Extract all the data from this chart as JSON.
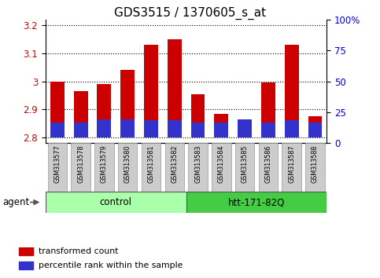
{
  "title": "GDS3515 / 1370605_s_at",
  "samples": [
    "GSM313577",
    "GSM313578",
    "GSM313579",
    "GSM313580",
    "GSM313581",
    "GSM313582",
    "GSM313583",
    "GSM313584",
    "GSM313585",
    "GSM313586",
    "GSM313587",
    "GSM313588"
  ],
  "transformed_count": [
    3.0,
    2.965,
    2.99,
    3.04,
    3.13,
    3.15,
    2.955,
    2.885,
    2.845,
    2.995,
    3.13,
    2.875
  ],
  "percentile_rank_pct": [
    12,
    12,
    15,
    15,
    14,
    14,
    12,
    12,
    15,
    12,
    14,
    12
  ],
  "bar_base": 2.8,
  "ylim_left": [
    2.78,
    3.22
  ],
  "ylim_right": [
    0,
    100
  ],
  "right_ticks": [
    0,
    25,
    50,
    75,
    100
  ],
  "right_tick_labels": [
    "0",
    "25",
    "50",
    "75",
    "100%"
  ],
  "left_yticks": [
    2.8,
    2.9,
    3.0,
    3.1,
    3.2
  ],
  "left_ytick_labels": [
    "2.8",
    "2.9",
    "3",
    "3.1",
    "3.2"
  ],
  "bar_color_red": "#cc0000",
  "bar_color_blue": "#3333cc",
  "bar_width": 0.6,
  "groups": [
    {
      "label": "control",
      "start": 0,
      "end": 6,
      "color": "#aaffaa"
    },
    {
      "label": "htt-171-82Q",
      "start": 6,
      "end": 12,
      "color": "#44cc44"
    }
  ],
  "agent_label": "agent",
  "legend_items": [
    {
      "label": "transformed count",
      "color": "#cc0000"
    },
    {
      "label": "percentile rank within the sample",
      "color": "#3333cc"
    }
  ],
  "grid_color": "black",
  "background_plot": "white",
  "title_fontsize": 11,
  "tick_label_color_left": "#cc0000",
  "tick_label_color_right": "#0000dd",
  "tickbox_color": "#cccccc",
  "tickbox_edge": "#999999"
}
